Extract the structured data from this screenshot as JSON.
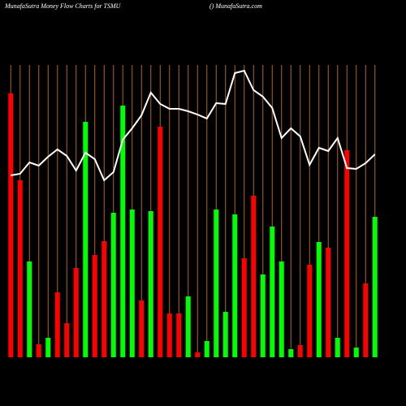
{
  "chart_data": {
    "type": "bar",
    "title": "MunafaSutra  Money Flow  Charts for TSMU",
    "subtitle": "() MunafaSutra.com",
    "ylim": [
      0,
      360
    ],
    "guide_color": "#b5651d",
    "line_color": "#ffffff",
    "values": [
      325,
      218,
      118,
      16,
      24,
      80,
      42,
      110,
      290,
      126,
      143,
      178,
      310,
      182,
      70,
      180,
      284,
      54,
      54,
      75,
      6,
      20,
      182,
      56,
      176,
      122,
      199,
      102,
      161,
      118,
      10,
      15,
      114,
      142,
      135,
      24,
      255,
      12,
      91,
      173
    ],
    "colors": [
      "#ff0000",
      "#ff0000",
      "#00ff00",
      "#ff0000",
      "#00ff00",
      "#ff0000",
      "#ff0000",
      "#ff0000",
      "#00ff00",
      "#ff0000",
      "#ff0000",
      "#00ff00",
      "#00ff00",
      "#00ff00",
      "#ff0000",
      "#00ff00",
      "#ff0000",
      "#ff0000",
      "#ff0000",
      "#00ff00",
      "#ff0000",
      "#00ff00",
      "#00ff00",
      "#00ff00",
      "#00ff00",
      "#ff0000",
      "#ff0000",
      "#00ff00",
      "#00ff00",
      "#00ff00",
      "#00ff00",
      "#ff0000",
      "#ff0000",
      "#00ff00",
      "#ff0000",
      "#00ff00",
      "#ff0000",
      "#00ff00",
      "#ff0000",
      "#00ff00"
    ],
    "line": [
      224,
      226,
      240,
      236,
      247,
      256,
      248,
      230,
      252,
      244,
      218,
      228,
      268,
      282,
      298,
      326,
      312,
      306,
      306,
      303,
      299,
      294,
      313,
      312,
      350,
      353,
      329,
      321,
      307,
      270,
      282,
      272,
      237,
      258,
      254,
      270,
      233,
      232,
      239,
      250
    ]
  }
}
